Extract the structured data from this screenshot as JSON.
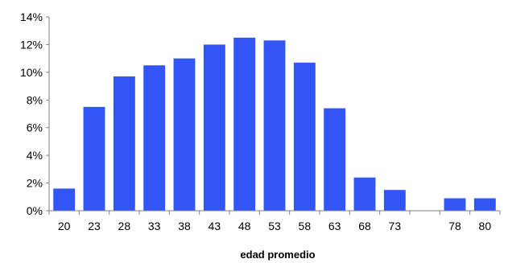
{
  "chart_data": {
    "type": "bar",
    "categories": [
      "20",
      "23",
      "28",
      "33",
      "38",
      "43",
      "48",
      "53",
      "58",
      "63",
      "68",
      "73",
      "",
      "78",
      "80"
    ],
    "values": [
      1.6,
      7.5,
      9.7,
      10.5,
      11.0,
      12.0,
      12.5,
      12.3,
      10.7,
      7.4,
      2.4,
      1.5,
      0,
      0.9,
      0.9
    ],
    "title": "",
    "xlabel": "edad promedio",
    "ylabel": "",
    "ylim": [
      0,
      14
    ],
    "yticks": [
      "0%",
      "2%",
      "4%",
      "6%",
      "8%",
      "10%",
      "12%",
      "14%"
    ],
    "grid": false,
    "legend": "none",
    "bar_color": "#3355f5",
    "axis_color": "#808080"
  }
}
